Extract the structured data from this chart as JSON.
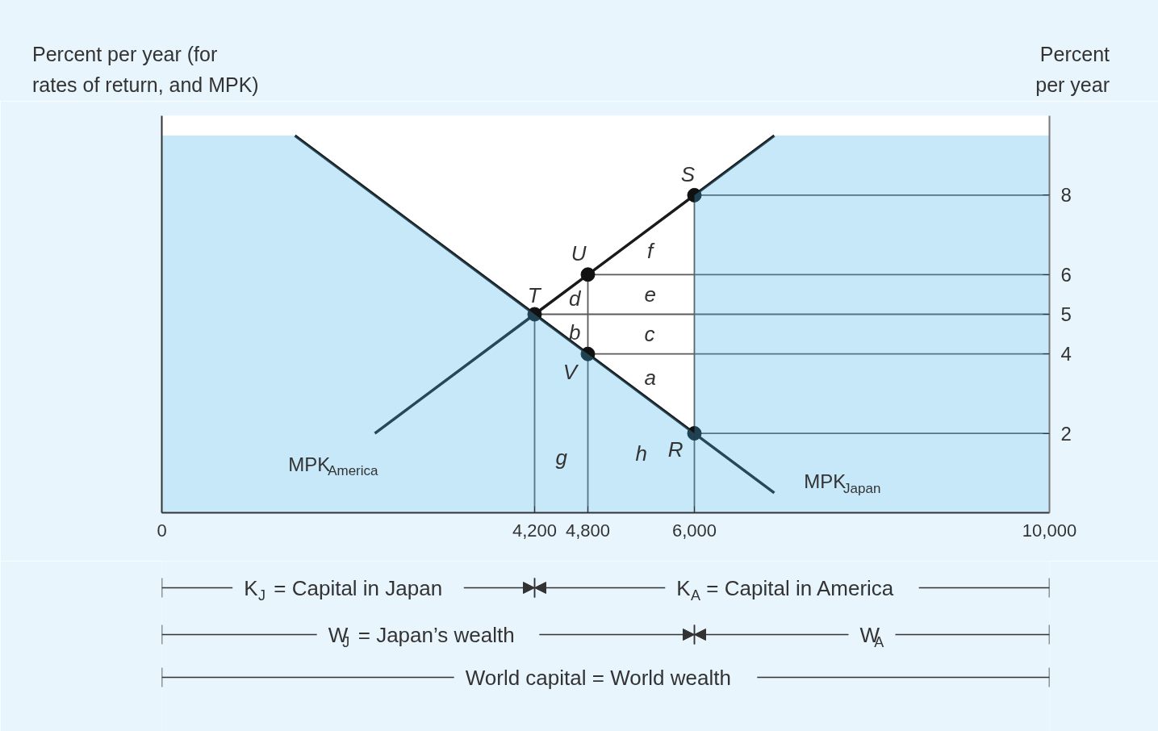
{
  "chart_data": {
    "type": "line",
    "ylabel": "Percent per year",
    "xlim": [
      0,
      10000
    ],
    "xticks": [
      0,
      {
        "value": 4200,
        "label": "4,200"
      },
      {
        "value": 4800,
        "label": "4,800"
      },
      {
        "value": 6000,
        "label": "6,000"
      },
      {
        "value": 10000,
        "label": "10,000"
      }
    ],
    "ylim": [
      0,
      10
    ],
    "yticks": [
      2,
      4,
      5,
      6,
      8
    ],
    "line_style": "solid",
    "series": [
      {
        "color": "#5a5a5a",
        "x": [
          6000,
          10000
        ],
        "values": [
          8,
          8
        ]
      },
      {
        "color": "#5a5a5a",
        "x": [
          4800,
          10000
        ],
        "values": [
          6,
          6
        ]
      },
      {
        "color": "#5a5a5a",
        "x": [
          4200,
          10000
        ],
        "values": [
          5,
          5
        ]
      },
      {
        "color": "#5a5a5a",
        "x": [
          4800,
          10000
        ],
        "values": [
          4,
          4
        ]
      },
      {
        "color": "#5a5a5a",
        "x": [
          6000,
          10000
        ],
        "values": [
          2,
          2
        ]
      },
      {
        "color": "#5a5a5a",
        "x": [
          4200,
          4200
        ],
        "values": [
          0,
          5
        ]
      },
      {
        "color": "#5a5a5a",
        "x": [
          4800,
          4800
        ],
        "values": [
          0,
          6
        ]
      },
      {
        "color": "#5a5a5a",
        "x": [
          6000,
          6000
        ],
        "values": [
          0,
          8
        ]
      },
      {
        "name": "MPK$_{America}$",
        "color": "#1a1a1a",
        "x": [
          2400,
          4200,
          4800,
          6000,
          6900
        ],
        "values": [
          2,
          5,
          6,
          8,
          9.5
        ]
      },
      {
        "name": "MPK$_{Japan}$",
        "color": "#1a1a1a",
        "x": [
          1500,
          4200,
          4800,
          6000,
          6900
        ],
        "values": [
          9.5,
          5,
          4,
          2,
          0.5
        ]
      },
      {
        "type": "scatter",
        "color": "#111111",
        "x": [
          4200,
          4800,
          4800,
          6000,
          6000
        ],
        "values": [
          5,
          6,
          4,
          2,
          8
        ]
      },
      {
        "type": "area",
        "color": "#41b2eb",
        "x": [
          0,
          1500,
          4200,
          4800,
          6000
        ],
        "values": [
          9.5,
          9.5,
          5,
          4,
          2
        ]
      },
      {
        "type": "area",
        "color": "#41b2eb",
        "x": [
          6000,
          6900,
          10000
        ],
        "values": [
          8,
          9.5,
          9.5
        ]
      }
    ],
    "annotations": [
      {
        "text": "T",
        "x": 4200,
        "y": 5
      },
      {
        "text": "U",
        "x": 4800,
        "y": 6
      },
      {
        "text": "V",
        "x": 4800,
        "y": 4
      },
      {
        "text": "R",
        "x": 6000,
        "y": 2
      },
      {
        "text": "S",
        "x": 6000,
        "y": 8
      },
      "a",
      "b",
      "c",
      "d",
      "e",
      "f",
      "g",
      "h",
      "K$_{J}$ = Capital in Japan",
      "K$_{A}$ = Capital in America",
      "W$_{J}$ = Japan’s wealth",
      "W$_{A}$",
      "World capital = World wealth",
      "Percent per year (for rates of return, and MPK)"
    ]
  }
}
